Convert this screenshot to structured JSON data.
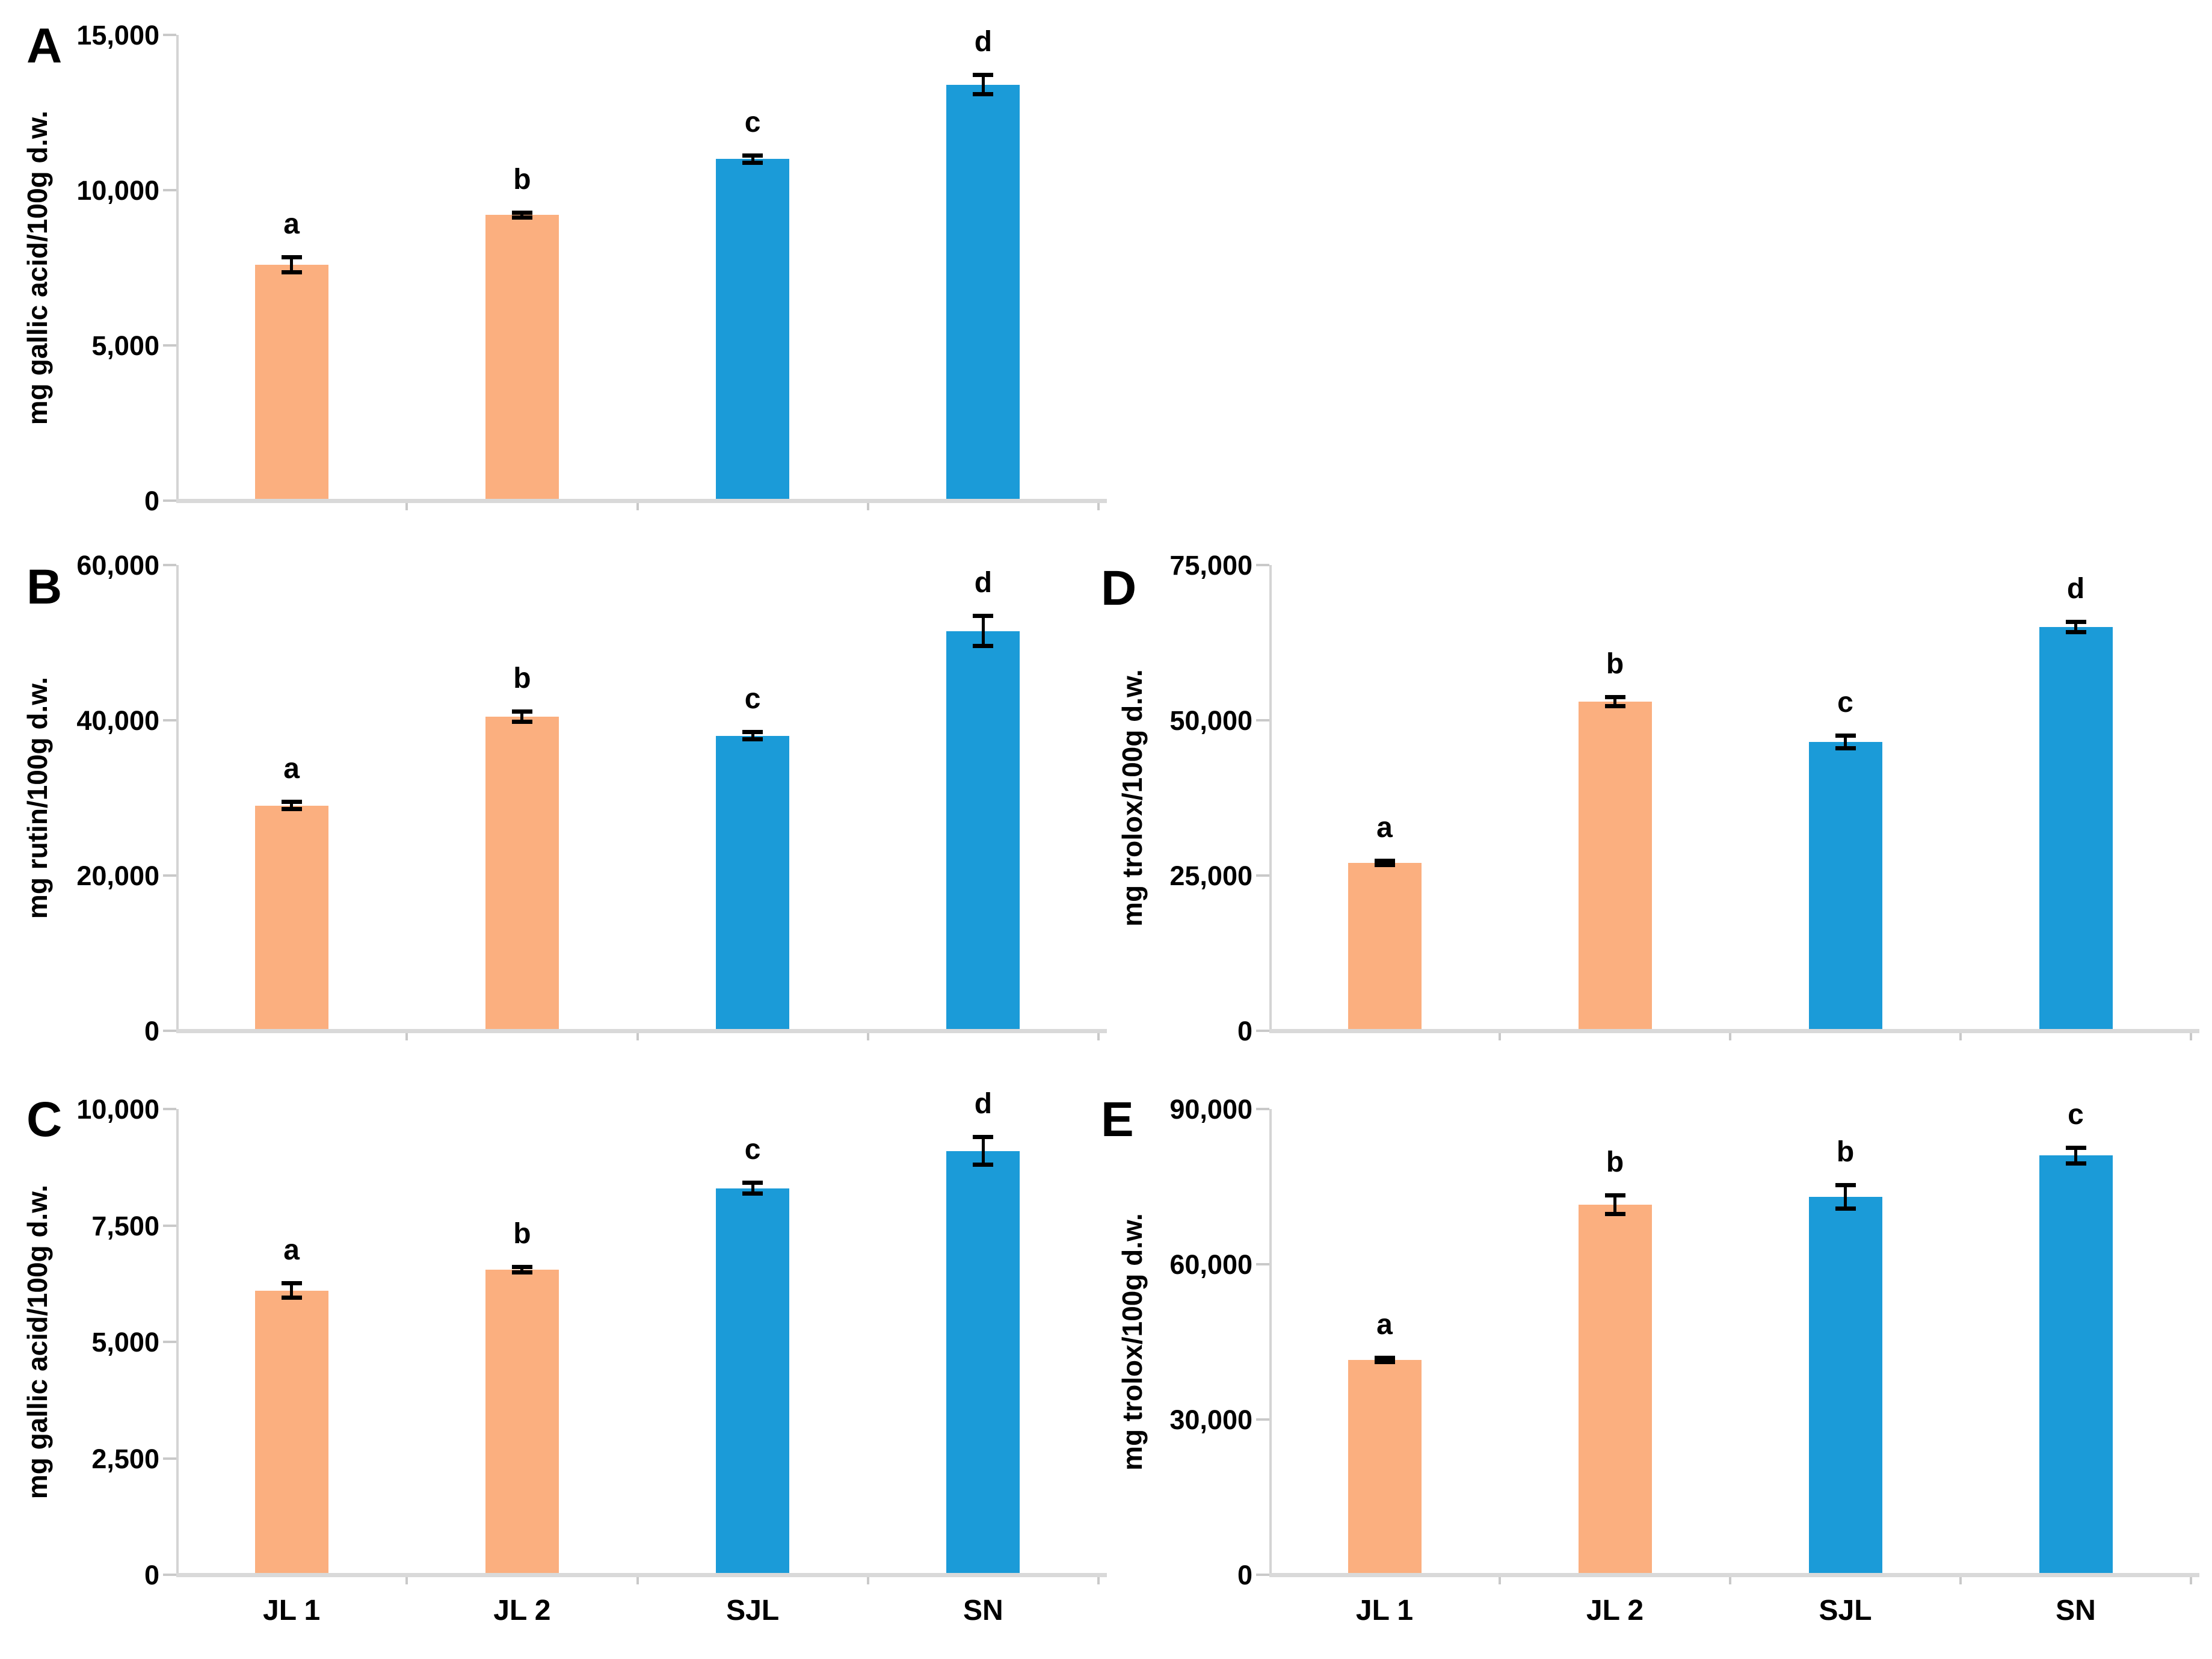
{
  "figure": {
    "background": "#ffffff",
    "description_colors": {
      "orange_bar": "#FBAF7F",
      "blue_bar": "#1B9BD8",
      "axis_line": "#D4D4D4",
      "baseline": "#D9D9D9",
      "tick_mark": "#C9C9C9",
      "error_bar": "#000000",
      "text": "#000000"
    }
  },
  "categories": [
    "JL 1",
    "JL 2",
    "SJL",
    "SN"
  ],
  "chart_data": [
    {
      "type": "bar",
      "panel": "A",
      "ylabel": "mg gallic acid/100g d.w.",
      "xlabel": "",
      "ylim": [
        0,
        15000
      ],
      "grid": false,
      "legend": "none",
      "yticks": [
        {
          "value": 0,
          "label": "0"
        },
        {
          "value": 5000,
          "label": "5,000"
        },
        {
          "value": 10000,
          "label": "10,000"
        },
        {
          "value": 15000,
          "label": "15,000"
        }
      ],
      "categories": [
        "JL 1",
        "JL 2",
        "SJL",
        "SN"
      ],
      "values": [
        7600,
        9200,
        11000,
        13400
      ],
      "errors": [
        250,
        90,
        130,
        320
      ],
      "sig_letters": [
        "a",
        "b",
        "c",
        "d"
      ],
      "bar_colors": [
        "#FBAF7F",
        "#FBAF7F",
        "#1B9BD8",
        "#1B9BD8"
      ],
      "show_x_labels": false
    },
    {
      "type": "bar",
      "panel": "B",
      "ylabel": "mg rutin/100g d.w.",
      "xlabel": "",
      "ylim": [
        0,
        60000
      ],
      "grid": false,
      "legend": "none",
      "yticks": [
        {
          "value": 0,
          "label": "0"
        },
        {
          "value": 20000,
          "label": "20,000"
        },
        {
          "value": 40000,
          "label": "40,000"
        },
        {
          "value": 60000,
          "label": "60,000"
        }
      ],
      "categories": [
        "JL 1",
        "JL 2",
        "SJL",
        "SN"
      ],
      "values": [
        29000,
        40500,
        38000,
        51500
      ],
      "errors": [
        500,
        700,
        500,
        2000
      ],
      "sig_letters": [
        "a",
        "b",
        "c",
        "d"
      ],
      "bar_colors": [
        "#FBAF7F",
        "#FBAF7F",
        "#1B9BD8",
        "#1B9BD8"
      ],
      "show_x_labels": false
    },
    {
      "type": "bar",
      "panel": "C",
      "ylabel": "mg gallic acid/100g d.w.",
      "xlabel": "",
      "ylim": [
        0,
        10000
      ],
      "grid": false,
      "legend": "none",
      "yticks": [
        {
          "value": 0,
          "label": "0"
        },
        {
          "value": 2500,
          "label": "2,500"
        },
        {
          "value": 5000,
          "label": "5,000"
        },
        {
          "value": 7500,
          "label": "7,500"
        },
        {
          "value": 10000,
          "label": "10,000"
        }
      ],
      "categories": [
        "JL 1",
        "JL 2",
        "SJL",
        "SN"
      ],
      "values": [
        6100,
        6550,
        8300,
        9100
      ],
      "errors": [
        160,
        70,
        120,
        300
      ],
      "sig_letters": [
        "a",
        "b",
        "c",
        "d"
      ],
      "bar_colors": [
        "#FBAF7F",
        "#FBAF7F",
        "#1B9BD8",
        "#1B9BD8"
      ],
      "show_x_labels": true
    },
    {
      "type": "bar",
      "panel": "D",
      "ylabel": "mg trolox/100g d.w.",
      "xlabel": "",
      "ylim": [
        0,
        75000
      ],
      "grid": false,
      "legend": "none",
      "yticks": [
        {
          "value": 0,
          "label": "0"
        },
        {
          "value": 25000,
          "label": "25,000"
        },
        {
          "value": 50000,
          "label": "50,000"
        },
        {
          "value": 75000,
          "label": "75,000"
        }
      ],
      "categories": [
        "JL 1",
        "JL 2",
        "SJL",
        "SN"
      ],
      "values": [
        27000,
        53000,
        46500,
        65000
      ],
      "errors": [
        400,
        800,
        1100,
        900
      ],
      "sig_letters": [
        "a",
        "b",
        "c",
        "d"
      ],
      "bar_colors": [
        "#FBAF7F",
        "#FBAF7F",
        "#1B9BD8",
        "#1B9BD8"
      ],
      "show_x_labels": false
    },
    {
      "type": "bar",
      "panel": "E",
      "ylabel": "mg trolox/100g d.w.",
      "xlabel": "",
      "ylim": [
        0,
        90000
      ],
      "grid": false,
      "legend": "none",
      "yticks": [
        {
          "value": 0,
          "label": "0"
        },
        {
          "value": 30000,
          "label": "30,000"
        },
        {
          "value": 60000,
          "label": "60,000"
        },
        {
          "value": 90000,
          "label": "90,000"
        }
      ],
      "categories": [
        "JL 1",
        "JL 2",
        "SJL",
        "SN"
      ],
      "values": [
        41500,
        71500,
        73000,
        81000
      ],
      "errors": [
        500,
        1900,
        2300,
        1600
      ],
      "sig_letters": [
        "a",
        "b",
        "b",
        "c"
      ],
      "bar_colors": [
        "#FBAF7F",
        "#FBAF7F",
        "#1B9BD8",
        "#1B9BD8"
      ],
      "show_x_labels": true
    }
  ]
}
